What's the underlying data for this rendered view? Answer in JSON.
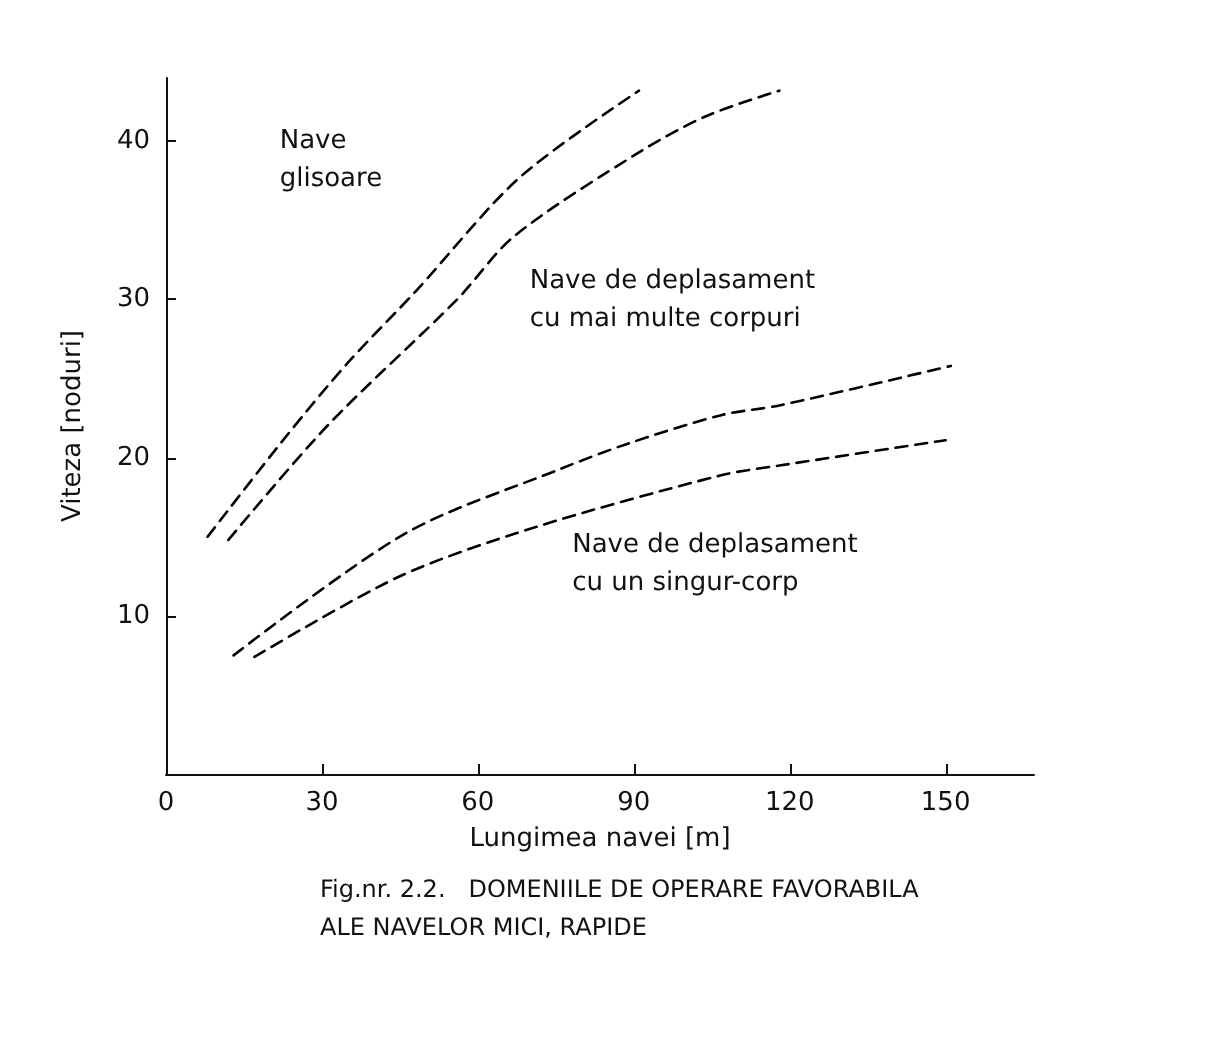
{
  "chart_data": {
    "type": "line",
    "title": "Fig.nr. 2.2.   DOMENIILE DE OPERARE FAVORABILA\nALE NAVELOR MICI, RAPIDE",
    "xlabel": "Lungimea navei [m]",
    "ylabel": "Viteza [noduri]",
    "series": [
      {
        "color": "#000000",
        "x": [
          8,
          23,
          35,
          48,
          68,
          91
        ],
        "values": [
          15,
          21.3,
          26,
          30.5,
          37.7,
          43.2
        ]
      },
      {
        "color": "#000000",
        "x": [
          12,
          31,
          56,
          67,
          91,
          104,
          118
        ],
        "values": [
          14.8,
          22,
          30,
          34,
          39.3,
          41.6,
          43.2
        ]
      },
      {
        "color": "#000000",
        "x": [
          13,
          46,
          76,
          89,
          107,
          118,
          151
        ],
        "values": [
          7.5,
          15.2,
          19.3,
          20.9,
          22.7,
          23.3,
          25.8
        ]
      },
      {
        "color": "#000000",
        "x": [
          17,
          45,
          71,
          107,
          118,
          150
        ],
        "values": [
          7.4,
          12.5,
          15.6,
          18.9,
          19.5,
          21.1
        ]
      }
    ],
    "annotations": [
      "Nave\nglisoare",
      "Nave de deplasament\ncu mai multe corpuri",
      "Nave de deplasament\ncu un singur-corp"
    ],
    "xlim": [
      0,
      167
    ],
    "ylim": [
      0,
      44
    ],
    "xticks": [
      0,
      30,
      60,
      90,
      120,
      150
    ],
    "yticks": [
      10,
      20,
      30,
      40
    ],
    "grid": false,
    "marker": "none",
    "line_style": "dashed"
  }
}
